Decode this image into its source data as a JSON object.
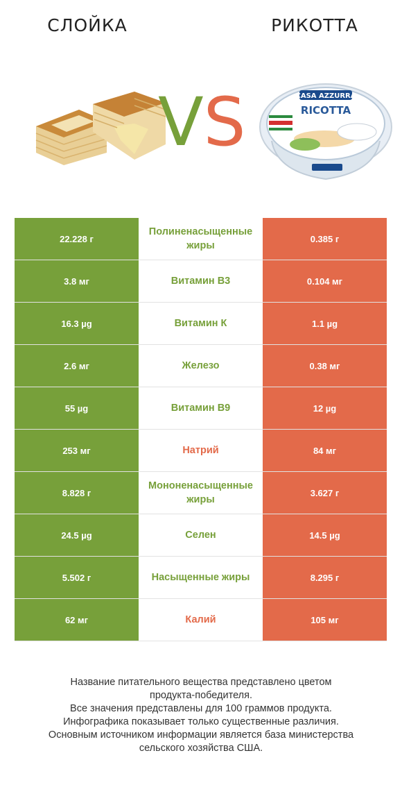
{
  "header": {
    "left_title": "СЛОЙКА",
    "right_title": "РИКОТТА",
    "vs_v": "V",
    "vs_s": "S"
  },
  "colors": {
    "winner_left": "#77a03a",
    "winner_right": "#e36a4a"
  },
  "chart_data": {
    "type": "table",
    "columns": [
      "СЛОЙКА",
      "",
      "РИКОТТА"
    ],
    "rows": [
      {
        "left": "22.228 г",
        "nutrient": "Полиненасыщенные жиры",
        "right": "0.385 г",
        "winner": "left"
      },
      {
        "left": "3.8 мг",
        "nutrient": "Витамин B3",
        "right": "0.104 мг",
        "winner": "left"
      },
      {
        "left": "16.3 µg",
        "nutrient": "Витамин К",
        "right": "1.1 µg",
        "winner": "left"
      },
      {
        "left": "2.6 мг",
        "nutrient": "Железо",
        "right": "0.38 мг",
        "winner": "left"
      },
      {
        "left": "55 µg",
        "nutrient": "Витамин B9",
        "right": "12 µg",
        "winner": "left"
      },
      {
        "left": "253 мг",
        "nutrient": "Натрий",
        "right": "84 мг",
        "winner": "right"
      },
      {
        "left": "8.828 г",
        "nutrient": "Мононенасыщенные жиры",
        "right": "3.627 г",
        "winner": "left"
      },
      {
        "left": "24.5 µg",
        "nutrient": "Селен",
        "right": "14.5 µg",
        "winner": "left"
      },
      {
        "left": "5.502 г",
        "nutrient": "Насыщенные жиры",
        "right": "8.295 г",
        "winner": "left"
      },
      {
        "left": "62 мг",
        "nutrient": "Калий",
        "right": "105 мг",
        "winner": "right"
      }
    ]
  },
  "footer": {
    "lines": [
      "Название питательного вещества представлено цветом",
      "продукта-победителя.",
      "Все значения представлены для 100 граммов продукта.",
      "Инфографика показывает только существенные различия.",
      "Основным источником информации является база министерства",
      "сельского хозяйства США."
    ]
  },
  "right_image": {
    "brand": "CASA AZZURRA",
    "product": "RICOTTA"
  }
}
